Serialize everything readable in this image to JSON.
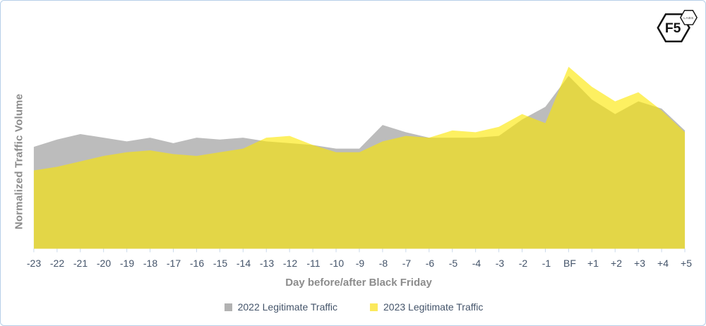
{
  "logo": {
    "main": "F5",
    "sub": "LABS"
  },
  "chart_data": {
    "type": "area",
    "title": "",
    "xlabel": "Day before/after Black Friday",
    "ylabel": "Normalized Traffic Volume",
    "categories": [
      "-23",
      "-22",
      "-21",
      "-20",
      "-19",
      "-18",
      "-17",
      "-16",
      "-15",
      "-14",
      "-13",
      "-12",
      "-11",
      "-10",
      "-9",
      "-8",
      "-7",
      "-6",
      "-5",
      "-4",
      "-3",
      "-2",
      "-1",
      "BF",
      "+1",
      "+2",
      "+3",
      "+4",
      "+5"
    ],
    "series": [
      {
        "name": "2022 Legitimate Traffic",
        "fill": "#bcbcbc",
        "legend_color": "#b2b2b2",
        "values": [
          0.56,
          0.6,
          0.63,
          0.61,
          0.59,
          0.61,
          0.58,
          0.61,
          0.6,
          0.61,
          0.59,
          0.58,
          0.57,
          0.55,
          0.55,
          0.68,
          0.64,
          0.61,
          0.61,
          0.61,
          0.62,
          0.71,
          0.78,
          0.95,
          0.82,
          0.74,
          0.81,
          0.77,
          0.65
        ]
      },
      {
        "name": "2023 Legitimate Traffic",
        "fill": "rgba(252,231,0,0.62)",
        "legend_color": "#fbe95c",
        "values": [
          0.43,
          0.45,
          0.48,
          0.51,
          0.53,
          0.54,
          0.52,
          0.51,
          0.53,
          0.55,
          0.61,
          0.62,
          0.57,
          0.53,
          0.53,
          0.59,
          0.62,
          0.61,
          0.65,
          0.64,
          0.67,
          0.74,
          0.69,
          1.0,
          0.89,
          0.81,
          0.86,
          0.76,
          0.64
        ]
      }
    ],
    "ylim": [
      0,
      1.05
    ],
    "grid": false,
    "legend_position": "bottom",
    "tick_color": "#c9d8ea",
    "tick_label_color": "#44546a",
    "axis_title_color": "#8c8c8c"
  }
}
